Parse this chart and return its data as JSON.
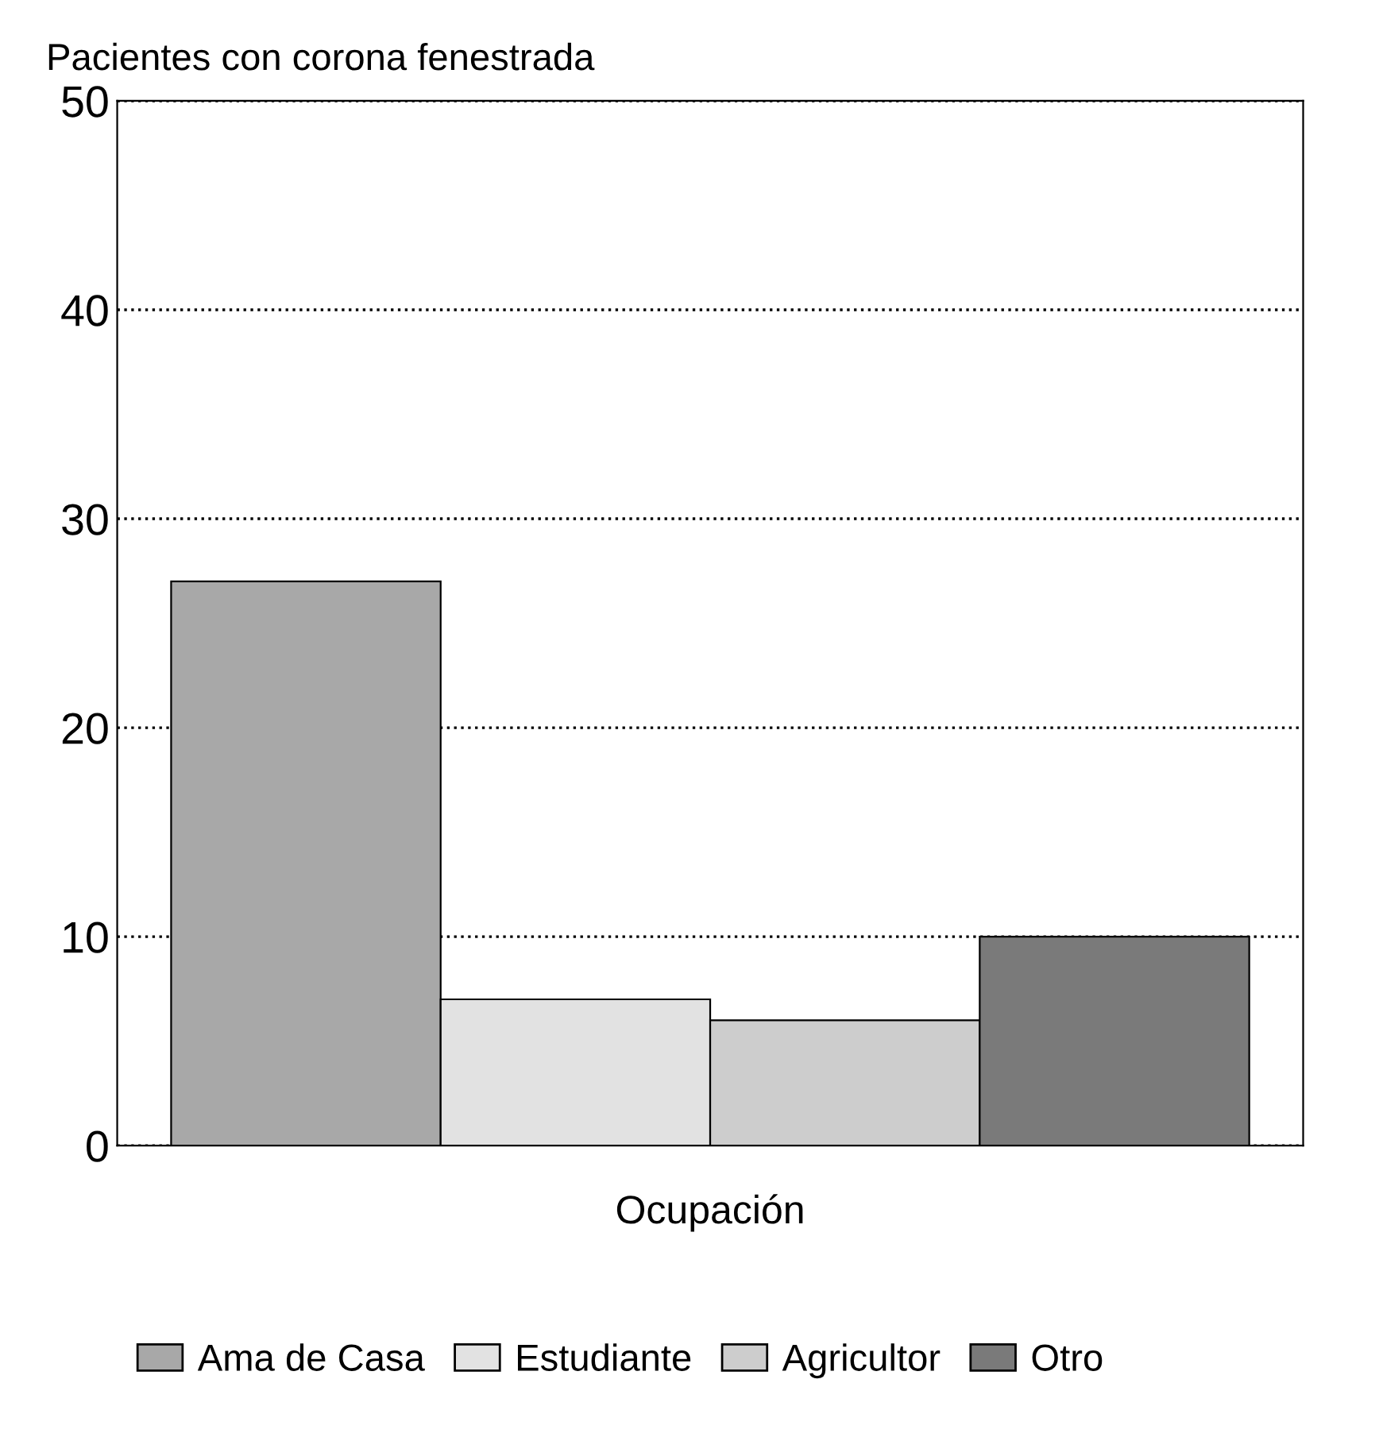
{
  "chart_data": {
    "type": "bar",
    "title": "Pacientes con corona fenestrada",
    "xlabel": "Ocupación",
    "categories": [
      null,
      null,
      null,
      null
    ],
    "series": [
      {
        "name": "Ama de Casa",
        "color": "#a8a8a8",
        "values": [
          27,
          null,
          null,
          null
        ]
      },
      {
        "name": "Estudiante",
        "color": "#e2e2e2",
        "values": [
          null,
          7,
          null,
          null
        ]
      },
      {
        "name": "Agricultor",
        "color": "#cdcdcd",
        "values": [
          null,
          null,
          6,
          null
        ]
      },
      {
        "name": "Otro",
        "color": "#7a7a7a",
        "values": [
          null,
          null,
          null,
          10
        ]
      }
    ],
    "ylim": [
      0,
      50
    ],
    "yticks": [
      0,
      10,
      20,
      30,
      40,
      50
    ],
    "grid": "y",
    "legend": "bottom",
    "tick_labels": "y"
  }
}
